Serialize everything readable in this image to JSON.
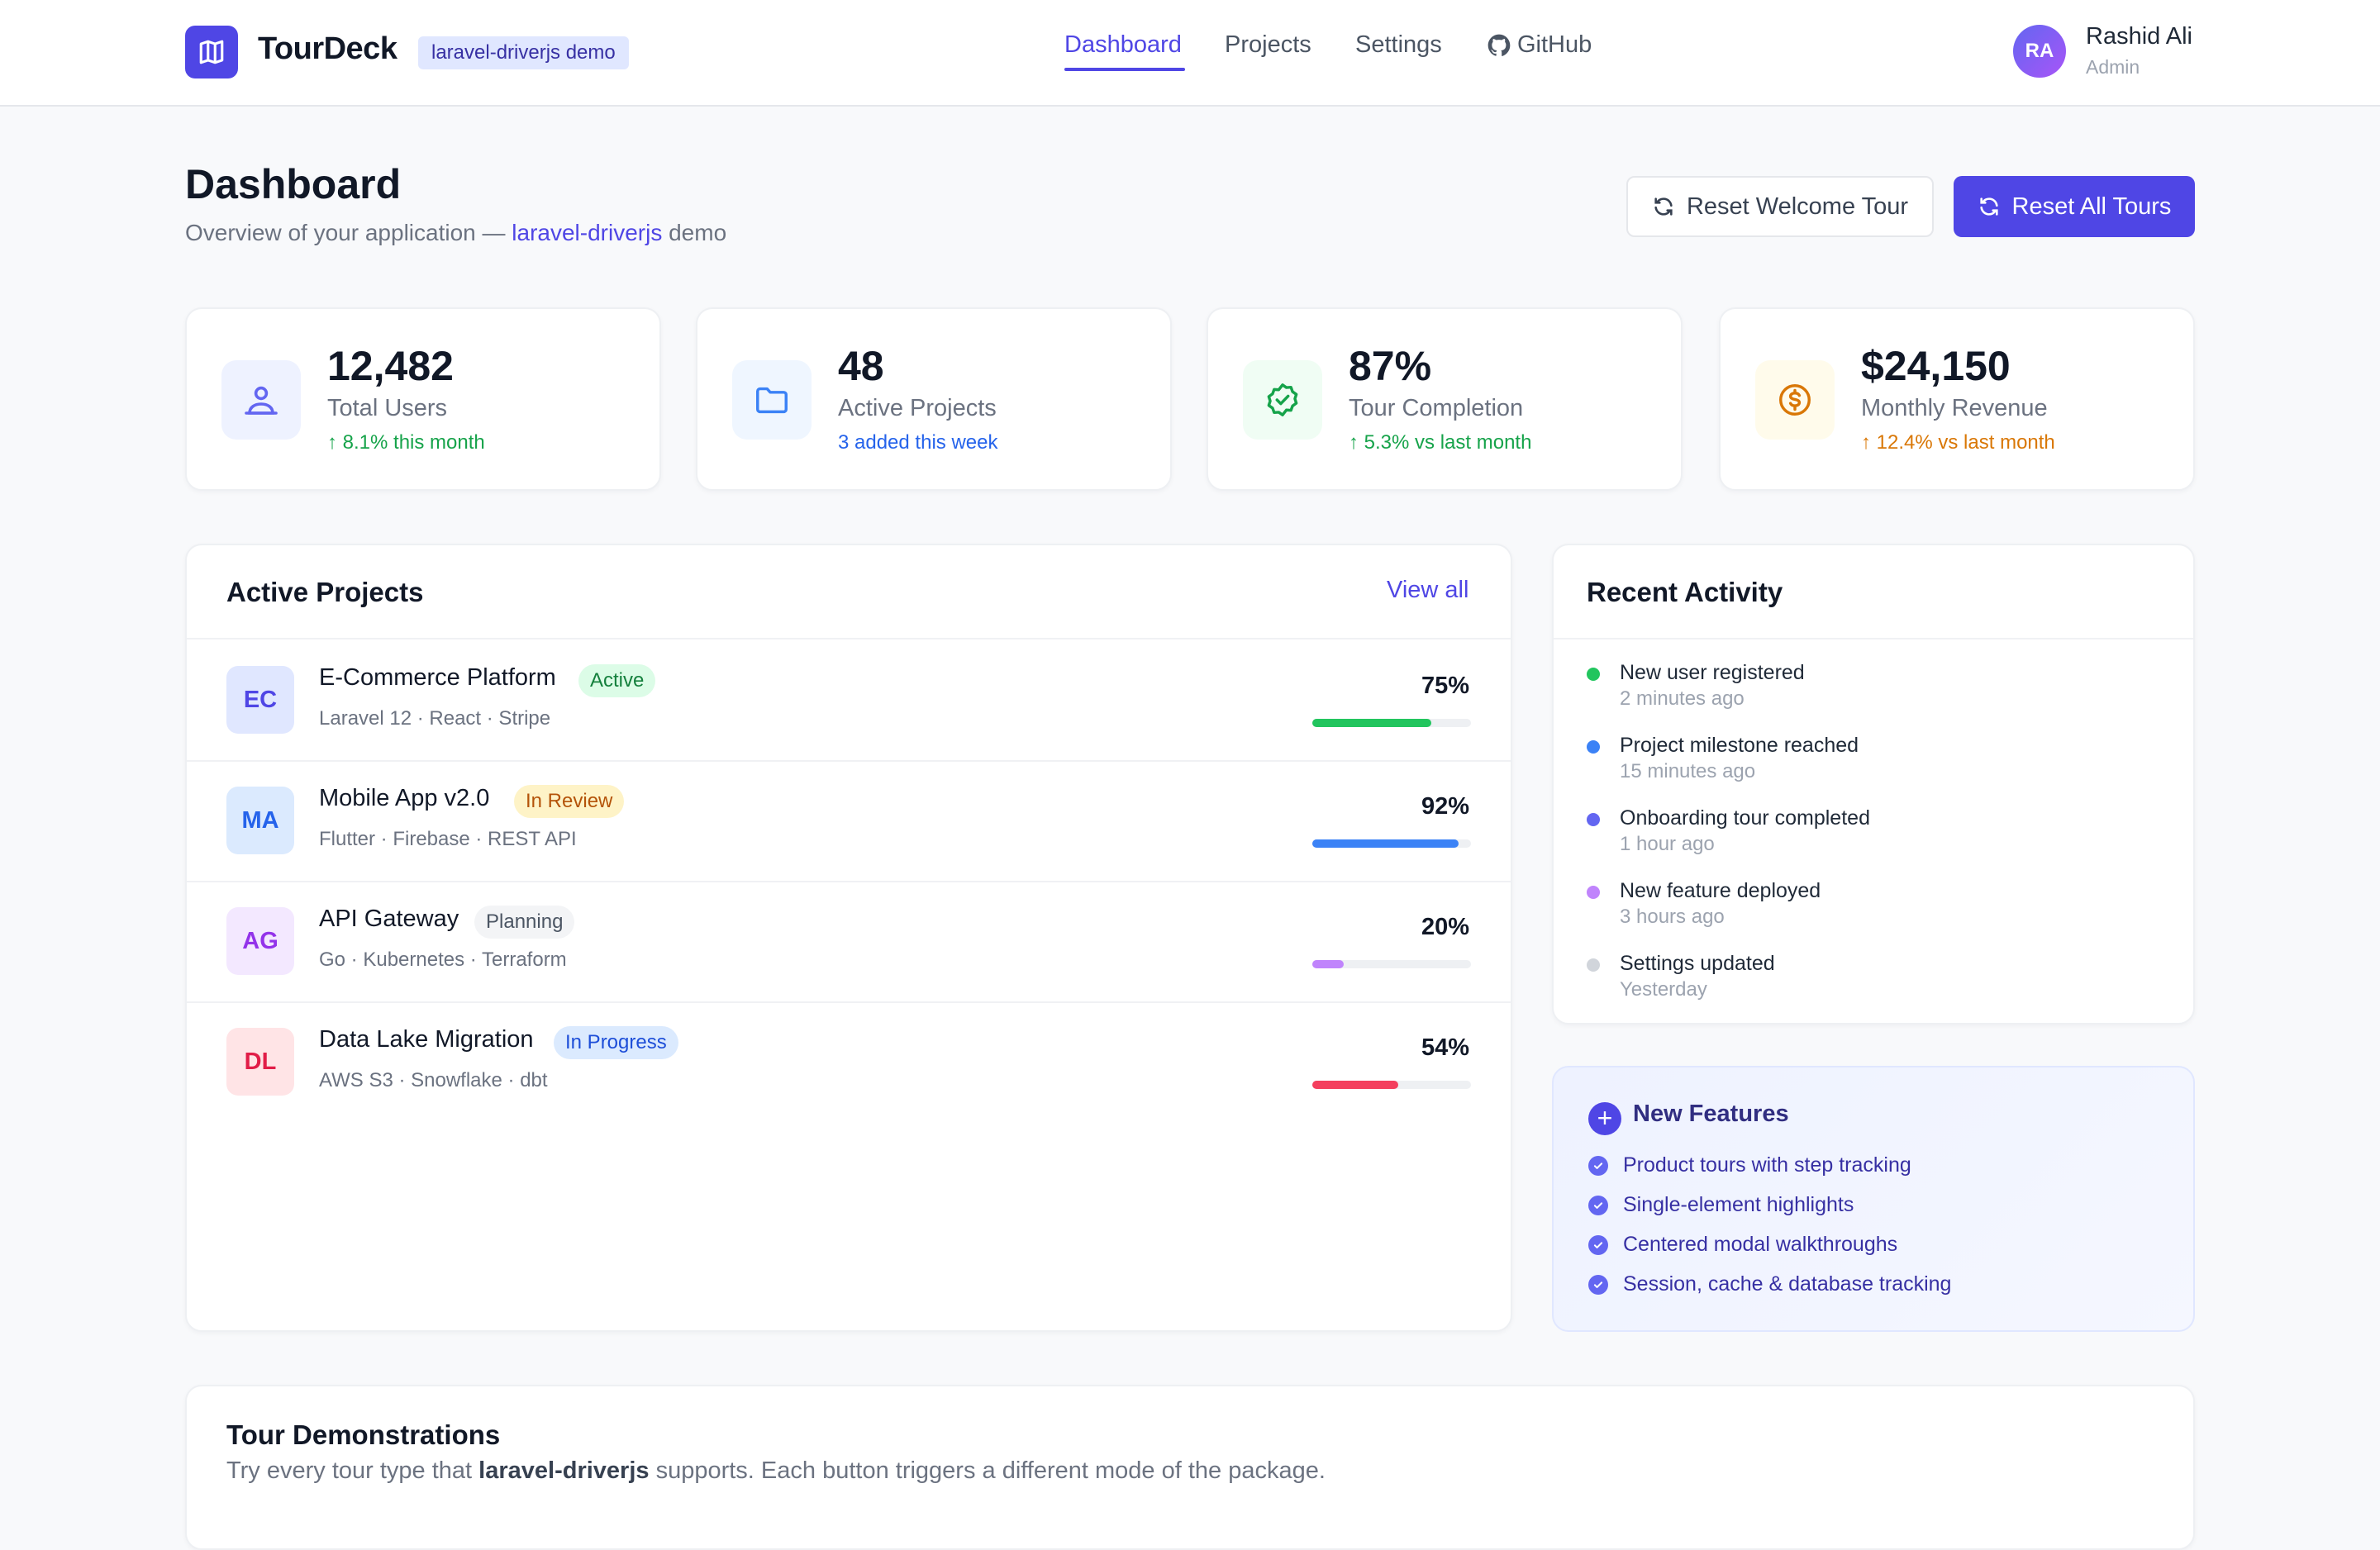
{
  "header": {
    "brand": "TourDeck",
    "demo_chip": "laravel-driverjs demo",
    "nav": [
      "Dashboard",
      "Projects",
      "Settings",
      "GitHub"
    ],
    "active_nav": "Dashboard",
    "user": {
      "initials": "RA",
      "name": "Rashid Ali",
      "role": "Admin"
    }
  },
  "page": {
    "title": "Dashboard",
    "subtitle_prefix": "Overview of your application — ",
    "subtitle_link": "laravel-driverjs",
    "subtitle_suffix": " demo",
    "reset_welcome_label": "Reset Welcome Tour",
    "reset_all_label": "Reset All Tours"
  },
  "stats": [
    {
      "value": "12,482",
      "label": "Total Users",
      "delta": "↑ 8.1% this month",
      "icon": "users-icon",
      "color": "#16a34a"
    },
    {
      "value": "48",
      "label": "Active Projects",
      "delta": "3 added this week",
      "icon": "folder-icon",
      "color": "#2563eb"
    },
    {
      "value": "87%",
      "label": "Tour Completion",
      "delta": "↑ 5.3% vs last month",
      "icon": "badge-check-icon",
      "color": "#16a34a"
    },
    {
      "value": "$24,150",
      "label": "Monthly Revenue",
      "delta": "↑ 12.4% vs last month",
      "icon": "dollar-icon",
      "color": "#d97706"
    }
  ],
  "projects": {
    "title": "Active Projects",
    "view_all": "View all",
    "items": [
      {
        "initials": "EC",
        "name": "E-Commerce Platform",
        "status": "Active",
        "stack": "Laravel 12 · React · Stripe",
        "progress": "75%",
        "progress_value": 75,
        "bar_color": "#22c55e"
      },
      {
        "initials": "MA",
        "name": "Mobile App v2.0",
        "status": "In Review",
        "stack": "Flutter · Firebase · REST API",
        "progress": "92%",
        "progress_value": 92,
        "bar_color": "#3b82f6"
      },
      {
        "initials": "AG",
        "name": "API Gateway",
        "status": "Planning",
        "stack": "Go · Kubernetes · Terraform",
        "progress": "20%",
        "progress_value": 20,
        "bar_color": "#c084fc"
      },
      {
        "initials": "DL",
        "name": "Data Lake Migration",
        "status": "In Progress",
        "stack": "AWS S3 · Snowflake · dbt",
        "progress": "54%",
        "progress_value": 54,
        "bar_color": "#f43f5e"
      }
    ]
  },
  "activity": {
    "title": "Recent Activity",
    "items": [
      {
        "title": "New user registered",
        "time": "2 minutes ago",
        "dot": "#22c55e"
      },
      {
        "title": "Project milestone reached",
        "time": "15 minutes ago",
        "dot": "#3b82f6"
      },
      {
        "title": "Onboarding tour completed",
        "time": "1 hour ago",
        "dot": "#6366f1"
      },
      {
        "title": "New feature deployed",
        "time": "3 hours ago",
        "dot": "#c084fc"
      },
      {
        "title": "Settings updated",
        "time": "Yesterday",
        "dot": "#d1d5db"
      }
    ]
  },
  "features": {
    "title": "New Features",
    "items": [
      "Product tours with step tracking",
      "Single-element highlights",
      "Centered modal walkthroughs",
      "Session, cache & database tracking"
    ]
  },
  "tours": {
    "title": "Tour Demonstrations",
    "desc_prefix": "Try every tour type that ",
    "desc_bold": "laravel-driverjs",
    "desc_suffix": " supports. Each button triggers a different mode of the package."
  }
}
